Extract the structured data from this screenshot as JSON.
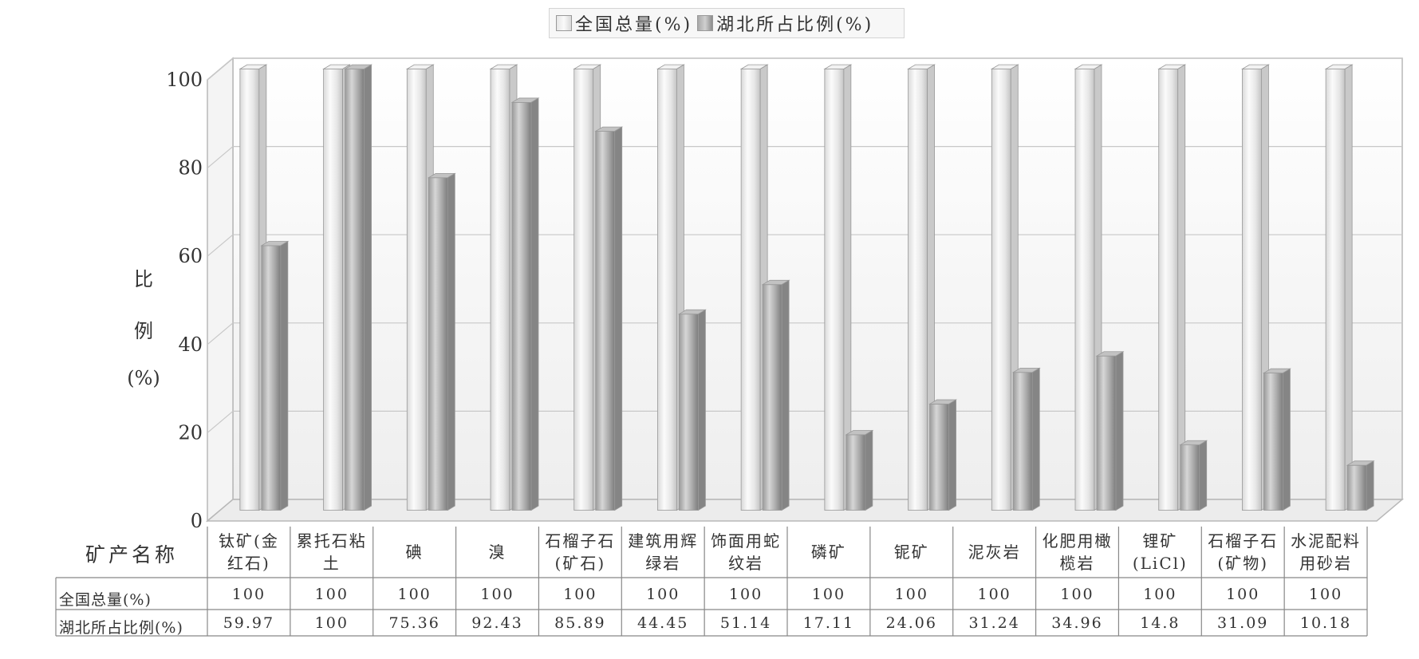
{
  "chart_data": {
    "type": "bar",
    "ylabel_chars": [
      "比",
      "例",
      "(%)"
    ],
    "ylim": [
      0,
      100
    ],
    "yticks": [
      0,
      20,
      40,
      60,
      80,
      100
    ],
    "grid": true,
    "legend_position": "top-center",
    "table_header": "矿产名称",
    "categories": [
      [
        "钛矿(金",
        "红石)"
      ],
      [
        "累托石粘",
        "土"
      ],
      [
        "碘"
      ],
      [
        "溴"
      ],
      [
        "石榴子石",
        "(矿石)"
      ],
      [
        "建筑用辉",
        "绿岩"
      ],
      [
        "饰面用蛇",
        "纹岩"
      ],
      [
        "磷矿"
      ],
      [
        "铌矿"
      ],
      [
        "泥灰岩"
      ],
      [
        "化肥用橄",
        "榄岩"
      ],
      [
        "锂矿",
        "(LiCl)"
      ],
      [
        "石榴子石",
        "(矿物)"
      ],
      [
        "水泥配料",
        "用砂岩"
      ]
    ],
    "series": [
      {
        "name": "全国总量(%)",
        "values": [
          100,
          100,
          100,
          100,
          100,
          100,
          100,
          100,
          100,
          100,
          100,
          100,
          100,
          100
        ],
        "labels": [
          "100",
          "100",
          "100",
          "100",
          "100",
          "100",
          "100",
          "100",
          "100",
          "100",
          "100",
          "100",
          "100",
          "100"
        ],
        "color": "#e8e8e8"
      },
      {
        "name": "湖北所占比例(%)",
        "values": [
          59.97,
          100,
          75.36,
          92.43,
          85.89,
          44.45,
          51.14,
          17.11,
          24.06,
          31.24,
          34.96,
          14.8,
          31.09,
          10.18
        ],
        "labels": [
          "59.97",
          "100",
          "75.36",
          "92.43",
          "85.89",
          "44.45",
          "51.14",
          "17.11",
          "24.06",
          "31.24",
          "34.96",
          "14.8",
          "31.09",
          "10.18"
        ],
        "color": "#b0b0b0"
      }
    ]
  }
}
